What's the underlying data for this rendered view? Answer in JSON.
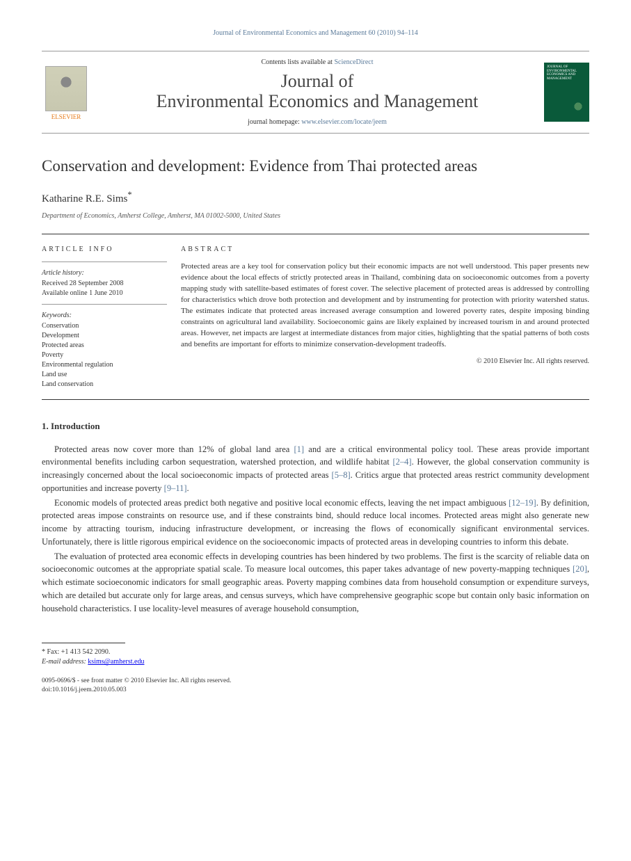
{
  "header": {
    "citation_line": "Journal of Environmental Economics and Management 60 (2010) 94–114",
    "contents_prefix": "Contents lists available at ",
    "contents_link_text": "ScienceDirect",
    "journal_name_line1": "Journal of",
    "journal_name_line2": "Environmental Economics and Management",
    "homepage_prefix": "journal homepage: ",
    "homepage_url": "www.elsevier.com/locate/jeem",
    "elsevier_label": "ELSEVIER",
    "cover_title": "JOURNAL OF ENVIRONMENTAL ECONOMICS AND MANAGEMENT"
  },
  "article": {
    "title": "Conservation and development: Evidence from Thai protected areas",
    "author": "Katharine R.E. Sims",
    "author_marker": "*",
    "affiliation": "Department of Economics, Amherst College, Amherst, MA 01002-5000, United States"
  },
  "info": {
    "section_label": "ARTICLE INFO",
    "history_head": "Article history:",
    "received": "Received 28 September 2008",
    "online": "Available online 1 June 2010",
    "keywords_head": "Keywords:",
    "keywords": [
      "Conservation",
      "Development",
      "Protected areas",
      "Poverty",
      "Environmental regulation",
      "Land use",
      "Land conservation"
    ]
  },
  "abstract": {
    "section_label": "ABSTRACT",
    "text": "Protected areas are a key tool for conservation policy but their economic impacts are not well understood. This paper presents new evidence about the local effects of strictly protected areas in Thailand, combining data on socioeconomic outcomes from a poverty mapping study with satellite-based estimates of forest cover. The selective placement of protected areas is addressed by controlling for characteristics which drove both protection and development and by instrumenting for protection with priority watershed status. The estimates indicate that protected areas increased average consumption and lowered poverty rates, despite imposing binding constraints on agricultural land availability. Socioeconomic gains are likely explained by increased tourism in and around protected areas. However, net impacts are largest at intermediate distances from major cities, highlighting that the spatial patterns of both costs and benefits are important for efforts to minimize conservation-development tradeoffs.",
    "copyright": "© 2010 Elsevier Inc. All rights reserved."
  },
  "body": {
    "section_number": "1.",
    "section_title": "Introduction",
    "para1_a": "Protected areas now cover more than 12% of global land area ",
    "ref1": "[1]",
    "para1_b": " and are a critical environmental policy tool. These areas provide important environmental benefits including carbon sequestration, watershed protection, and wildlife habitat ",
    "ref2": "[2–4]",
    "para1_c": ". However, the global conservation community is increasingly concerned about the local socioeconomic impacts of protected areas ",
    "ref3": "[5–8]",
    "para1_d": ". Critics argue that protected areas restrict community development opportunities and increase poverty ",
    "ref4": "[9–11]",
    "para1_e": ".",
    "para2_a": "Economic models of protected areas predict both negative and positive local economic effects, leaving the net impact ambiguous ",
    "ref5": "[12–19]",
    "para2_b": ". By definition, protected areas impose constraints on resource use, and if these constraints bind, should reduce local incomes. Protected areas might also generate new income by attracting tourism, inducing infrastructure development, or increasing the flows of economically significant environmental services. Unfortunately, there is little rigorous empirical evidence on the socioeconomic impacts of protected areas in developing countries to inform this debate.",
    "para3_a": "The evaluation of protected area economic effects in developing countries has been hindered by two problems. The first is the scarcity of reliable data on socioeconomic outcomes at the appropriate spatial scale. To measure local outcomes, this paper takes advantage of new poverty-mapping techniques ",
    "ref6": "[20]",
    "para3_b": ", which estimate socioeconomic indicators for small geographic areas. Poverty mapping combines data from household consumption or expenditure surveys, which are detailed but accurate only for large areas, and census surveys, which have comprehensive geographic scope but contain only basic information on household characteristics. I use locality-level measures of average household consumption,"
  },
  "footnotes": {
    "fax_label": "* Fax:",
    "fax": "+1 413 542 2090.",
    "email_label": "E-mail address:",
    "email": "ksims@amherst.edu"
  },
  "footer": {
    "line1": "0095-0696/$ - see front matter © 2010 Elsevier Inc. All rights reserved.",
    "line2": "doi:10.1016/j.jeem.2010.05.003"
  },
  "colors": {
    "link": "#5a7a9a",
    "text": "#333333",
    "elsevier_orange": "#e67817",
    "cover_green": "#0a5a3a"
  }
}
